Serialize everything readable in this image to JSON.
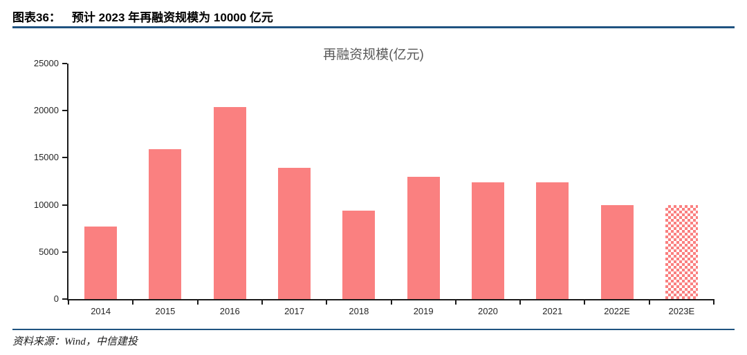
{
  "header": {
    "figure_label": "图表36：",
    "title": "预计 2023 年再融资规模为 10000 亿元"
  },
  "chart_data": {
    "type": "bar",
    "title": "再融资规模(亿元)",
    "categories": [
      "2014",
      "2015",
      "2016",
      "2017",
      "2018",
      "2019",
      "2020",
      "2021",
      "2022E",
      "2023E"
    ],
    "values": [
      7700,
      15900,
      20400,
      13900,
      9400,
      13000,
      12400,
      12400,
      10000,
      10000
    ],
    "unit": "亿元",
    "ylim": [
      0,
      25000
    ],
    "yticks": [
      0,
      5000,
      10000,
      15000,
      20000,
      25000
    ],
    "grid": false,
    "legend": null,
    "bar_color": "#FA8080",
    "pattern_category": "2023E",
    "pattern_style": "checkerboard"
  },
  "footer": {
    "source": "资料来源：Wind，中信建投"
  },
  "colors": {
    "rule": "#1F5380",
    "bar": "#FA8080",
    "axis": "#1A1A1A",
    "chart_title": "#595959"
  }
}
